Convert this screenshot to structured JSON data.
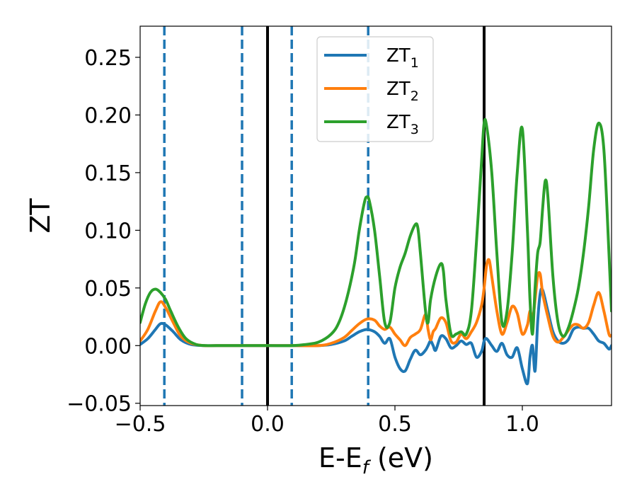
{
  "chart_data": {
    "type": "line",
    "title": "",
    "xlabel": "E-E",
    "xlabel_sub": "f",
    "xlabel_tail": " (eV)",
    "ylabel": "ZT",
    "xlim": [
      -0.5,
      1.35
    ],
    "ylim": [
      -0.052,
      0.277
    ],
    "xticks": [
      -0.5,
      0.0,
      0.5,
      1.0
    ],
    "xtick_labels": [
      "−0.5",
      "0.0",
      "0.5",
      "1.0"
    ],
    "yticks": [
      -0.05,
      0.0,
      0.05,
      0.1,
      0.15,
      0.2,
      0.25
    ],
    "ytick_labels": [
      "−0.05",
      "0.00",
      "0.05",
      "0.10",
      "0.15",
      "0.20",
      "0.25"
    ],
    "grid": false,
    "legend_position": "upper-center",
    "vertical_lines": [
      {
        "x": -0.405,
        "style": "dashed",
        "color": "#1f77b4"
      },
      {
        "x": -0.1,
        "style": "dashed",
        "color": "#1f77b4"
      },
      {
        "x": 0.0,
        "style": "solid",
        "color": "#000000"
      },
      {
        "x": 0.095,
        "style": "dashed",
        "color": "#1f77b4"
      },
      {
        "x": 0.395,
        "style": "dashed",
        "color": "#1f77b4"
      },
      {
        "x": 0.85,
        "style": "solid",
        "color": "#000000"
      }
    ],
    "series": [
      {
        "name": "ZT",
        "name_sub": "1",
        "color": "#1f77b4",
        "x": [
          -0.5,
          -0.47,
          -0.44,
          -0.42,
          -0.4,
          -0.37,
          -0.34,
          -0.3,
          -0.25,
          -0.2,
          -0.1,
          0.0,
          0.1,
          0.2,
          0.25,
          0.3,
          0.33,
          0.36,
          0.39,
          0.42,
          0.44,
          0.46,
          0.48,
          0.5,
          0.52,
          0.54,
          0.56,
          0.58,
          0.6,
          0.62,
          0.63,
          0.64,
          0.65,
          0.66,
          0.68,
          0.7,
          0.72,
          0.74,
          0.76,
          0.78,
          0.8,
          0.82,
          0.84,
          0.85,
          0.86,
          0.88,
          0.9,
          0.92,
          0.94,
          0.96,
          0.98,
          1.0,
          1.02,
          1.03,
          1.04,
          1.05,
          1.06,
          1.07,
          1.08,
          1.1,
          1.12,
          1.14,
          1.16,
          1.18,
          1.2,
          1.22,
          1.24,
          1.26,
          1.28,
          1.3,
          1.32,
          1.34,
          1.35
        ],
        "y": [
          0.001,
          0.006,
          0.014,
          0.019,
          0.018,
          0.012,
          0.005,
          0.001,
          0.0,
          0.0,
          0.0,
          0.0,
          0.0,
          0.0,
          0.001,
          0.004,
          0.008,
          0.012,
          0.014,
          0.012,
          0.008,
          0.002,
          0.006,
          -0.01,
          -0.02,
          -0.022,
          -0.012,
          -0.004,
          -0.008,
          -0.004,
          0.0,
          0.004,
          0.0,
          -0.004,
          0.008,
          0.006,
          -0.002,
          0.0,
          0.004,
          0.001,
          0.002,
          -0.01,
          -0.005,
          0.004,
          0.006,
          0.0,
          -0.005,
          0.002,
          -0.008,
          -0.01,
          -0.002,
          -0.02,
          -0.033,
          -0.01,
          0.0,
          -0.022,
          0.02,
          0.045,
          0.048,
          0.03,
          0.012,
          0.004,
          0.002,
          0.005,
          0.014,
          0.016,
          0.015,
          0.015,
          0.01,
          0.004,
          0.002,
          -0.003,
          0.0
        ]
      },
      {
        "name": "ZT",
        "name_sub": "2",
        "color": "#ff7f0e",
        "x": [
          -0.5,
          -0.47,
          -0.44,
          -0.42,
          -0.4,
          -0.37,
          -0.34,
          -0.3,
          -0.25,
          -0.2,
          -0.1,
          0.0,
          0.1,
          0.2,
          0.25,
          0.3,
          0.33,
          0.36,
          0.39,
          0.42,
          0.44,
          0.46,
          0.48,
          0.5,
          0.52,
          0.54,
          0.56,
          0.58,
          0.6,
          0.62,
          0.63,
          0.64,
          0.65,
          0.66,
          0.68,
          0.7,
          0.72,
          0.74,
          0.76,
          0.78,
          0.8,
          0.82,
          0.84,
          0.85,
          0.86,
          0.87,
          0.88,
          0.9,
          0.92,
          0.94,
          0.96,
          0.98,
          1.0,
          1.02,
          1.03,
          1.04,
          1.05,
          1.06,
          1.07,
          1.08,
          1.1,
          1.12,
          1.14,
          1.16,
          1.18,
          1.2,
          1.22,
          1.24,
          1.26,
          1.28,
          1.3,
          1.32,
          1.34,
          1.35
        ],
        "y": [
          0.004,
          0.014,
          0.03,
          0.038,
          0.033,
          0.02,
          0.008,
          0.002,
          0.0,
          0.0,
          0.0,
          0.0,
          0.0,
          0.0,
          0.002,
          0.007,
          0.013,
          0.019,
          0.023,
          0.022,
          0.017,
          0.014,
          0.016,
          0.01,
          0.005,
          0.0,
          0.007,
          0.01,
          0.014,
          0.027,
          0.014,
          0.005,
          0.012,
          0.015,
          0.024,
          0.02,
          0.004,
          0.003,
          0.01,
          0.006,
          0.012,
          0.02,
          0.035,
          0.05,
          0.07,
          0.074,
          0.06,
          0.03,
          0.01,
          0.02,
          0.034,
          0.028,
          0.01,
          0.018,
          0.03,
          0.022,
          0.04,
          0.06,
          0.062,
          0.045,
          0.025,
          0.008,
          0.003,
          0.007,
          0.013,
          0.018,
          0.018,
          0.015,
          0.02,
          0.035,
          0.046,
          0.03,
          0.01,
          0.009
        ]
      },
      {
        "name": "ZT",
        "name_sub": "3",
        "color": "#2ca02c",
        "x": [
          -0.5,
          -0.48,
          -0.46,
          -0.44,
          -0.42,
          -0.4,
          -0.38,
          -0.35,
          -0.32,
          -0.28,
          -0.24,
          -0.2,
          -0.1,
          0.0,
          0.1,
          0.15,
          0.2,
          0.25,
          0.28,
          0.31,
          0.34,
          0.36,
          0.38,
          0.39,
          0.4,
          0.42,
          0.44,
          0.46,
          0.48,
          0.5,
          0.52,
          0.54,
          0.56,
          0.58,
          0.59,
          0.6,
          0.62,
          0.63,
          0.64,
          0.66,
          0.68,
          0.69,
          0.7,
          0.72,
          0.74,
          0.76,
          0.78,
          0.8,
          0.82,
          0.84,
          0.85,
          0.86,
          0.88,
          0.9,
          0.92,
          0.94,
          0.96,
          0.98,
          1.0,
          1.02,
          1.03,
          1.04,
          1.05,
          1.06,
          1.07,
          1.08,
          1.09,
          1.1,
          1.12,
          1.14,
          1.16,
          1.18,
          1.2,
          1.22,
          1.24,
          1.26,
          1.28,
          1.3,
          1.32,
          1.34,
          1.35
        ],
        "y": [
          0.02,
          0.036,
          0.046,
          0.049,
          0.046,
          0.04,
          0.03,
          0.016,
          0.006,
          0.001,
          0.0,
          0.0,
          0.0,
          0.0,
          0.0,
          0.001,
          0.003,
          0.01,
          0.02,
          0.04,
          0.07,
          0.1,
          0.124,
          0.129,
          0.125,
          0.1,
          0.06,
          0.02,
          0.02,
          0.05,
          0.068,
          0.08,
          0.095,
          0.105,
          0.102,
          0.08,
          0.03,
          0.02,
          0.04,
          0.06,
          0.071,
          0.065,
          0.04,
          0.01,
          0.01,
          0.012,
          0.01,
          0.03,
          0.09,
          0.16,
          0.193,
          0.19,
          0.15,
          0.08,
          0.02,
          0.03,
          0.08,
          0.15,
          0.188,
          0.1,
          0.04,
          0.01,
          0.05,
          0.08,
          0.09,
          0.12,
          0.143,
          0.13,
          0.06,
          0.02,
          0.008,
          0.015,
          0.03,
          0.05,
          0.08,
          0.12,
          0.17,
          0.193,
          0.17,
          0.08,
          0.03
        ]
      }
    ]
  }
}
